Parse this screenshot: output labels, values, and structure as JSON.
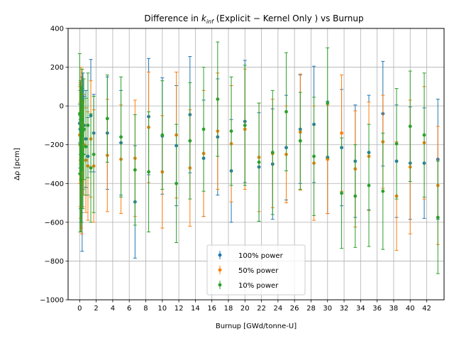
{
  "chart_data": {
    "type": "scatter",
    "title": "Difference in k_inf (Explicit − Kernel Only ) vs Burnup",
    "title_parts": {
      "prefix": "Difference in ",
      "k": "k",
      "sub": "inf",
      "suffix": " (Explicit − Kernel Only ) vs Burnup"
    },
    "xlabel": "Burnup [GWd/tonne-U]",
    "ylabel": "Δρ [pcm]",
    "xlim": [
      -1.4,
      44.1
    ],
    "ylim": [
      -1000,
      400
    ],
    "xticks": [
      0,
      2,
      4,
      6,
      8,
      10,
      12,
      14,
      16,
      18,
      20,
      22,
      24,
      26,
      28,
      30,
      32,
      34,
      36,
      38,
      40,
      42
    ],
    "yticks": [
      -1000,
      -800,
      -600,
      -400,
      -200,
      0,
      200,
      400
    ],
    "grid": true,
    "legend_position": "bottom-center",
    "series": [
      {
        "name": "100% power",
        "color": "#1f77b4",
        "points": [
          {
            "x": 0.0,
            "y": -90,
            "err": 100
          },
          {
            "x": 0.05,
            "y": -120,
            "err": 200
          },
          {
            "x": 0.1,
            "y": -70,
            "err": 180
          },
          {
            "x": 0.15,
            "y": -300,
            "err": 300
          },
          {
            "x": 0.2,
            "y": -130,
            "err": 230
          },
          {
            "x": 0.25,
            "y": -200,
            "err": 350
          },
          {
            "x": 0.3,
            "y": -330,
            "err": 420
          },
          {
            "x": 0.4,
            "y": -130,
            "err": 300
          },
          {
            "x": 0.5,
            "y": -100,
            "err": 150
          },
          {
            "x": 0.75,
            "y": -170,
            "err": 250
          },
          {
            "x": 1.0,
            "y": -260,
            "err": 200
          },
          {
            "x": 1.35,
            "y": -50,
            "err": 290
          },
          {
            "x": 1.7,
            "y": -140,
            "err": 200
          },
          {
            "x": 3.35,
            "y": -140,
            "err": 290
          },
          {
            "x": 5.0,
            "y": -190,
            "err": 270
          },
          {
            "x": 6.7,
            "y": -495,
            "err": 290
          },
          {
            "x": 8.35,
            "y": -55,
            "err": 300
          },
          {
            "x": 10.0,
            "y": -155,
            "err": 300
          },
          {
            "x": 11.7,
            "y": -205,
            "err": 310
          },
          {
            "x": 13.35,
            "y": -45,
            "err": 300
          },
          {
            "x": 15.0,
            "y": -270,
            "err": 300
          },
          {
            "x": 16.7,
            "y": -160,
            "err": 300
          },
          {
            "x": 18.35,
            "y": -335,
            "err": 265
          },
          {
            "x": 20.0,
            "y": -80,
            "err": 315
          },
          {
            "x": 21.7,
            "y": -315,
            "err": 280
          },
          {
            "x": 23.35,
            "y": -300,
            "err": 285
          },
          {
            "x": 25.0,
            "y": -215,
            "err": 270
          },
          {
            "x": 26.7,
            "y": -120,
            "err": 280
          },
          {
            "x": 28.35,
            "y": -95,
            "err": 300
          },
          {
            "x": 30.0,
            "y": -265,
            "err": 290
          },
          {
            "x": 31.7,
            "y": -215,
            "err": 300
          },
          {
            "x": 33.35,
            "y": -285,
            "err": 290
          },
          {
            "x": 35.0,
            "y": -240,
            "err": 295
          },
          {
            "x": 36.7,
            "y": -40,
            "err": 270
          },
          {
            "x": 38.35,
            "y": -285,
            "err": 290
          },
          {
            "x": 40.0,
            "y": -295,
            "err": 290
          },
          {
            "x": 41.7,
            "y": -295,
            "err": 285
          },
          {
            "x": 43.35,
            "y": -275,
            "err": 310
          }
        ]
      },
      {
        "name": "50% power",
        "color": "#ff7f0e",
        "points": [
          {
            "x": 0.0,
            "y": -150,
            "err": 250
          },
          {
            "x": 0.05,
            "y": -200,
            "err": 320
          },
          {
            "x": 0.1,
            "y": -280,
            "err": 300
          },
          {
            "x": 0.15,
            "y": -50,
            "err": 250
          },
          {
            "x": 0.2,
            "y": -300,
            "err": 330
          },
          {
            "x": 0.25,
            "y": -380,
            "err": 280
          },
          {
            "x": 0.3,
            "y": -100,
            "err": 290
          },
          {
            "x": 0.4,
            "y": -250,
            "err": 270
          },
          {
            "x": 0.5,
            "y": -200,
            "err": 260
          },
          {
            "x": 0.75,
            "y": -280,
            "err": 270
          },
          {
            "x": 1.0,
            "y": -310,
            "err": 280
          },
          {
            "x": 1.35,
            "y": -170,
            "err": 300
          },
          {
            "x": 1.7,
            "y": -310,
            "err": 290
          },
          {
            "x": 3.35,
            "y": -255,
            "err": 290
          },
          {
            "x": 5.0,
            "y": -275,
            "err": 280
          },
          {
            "x": 6.7,
            "y": -270,
            "err": 300
          },
          {
            "x": 8.35,
            "y": -110,
            "err": 285
          },
          {
            "x": 10.0,
            "y": -340,
            "err": 290
          },
          {
            "x": 11.7,
            "y": -150,
            "err": 325
          },
          {
            "x": 13.35,
            "y": -320,
            "err": 300
          },
          {
            "x": 15.0,
            "y": -245,
            "err": 325
          },
          {
            "x": 16.7,
            "y": -130,
            "err": 300
          },
          {
            "x": 18.35,
            "y": -195,
            "err": 300
          },
          {
            "x": 20.0,
            "y": -120,
            "err": 310
          },
          {
            "x": 21.7,
            "y": -265,
            "err": 280
          },
          {
            "x": 23.35,
            "y": -245,
            "err": 280
          },
          {
            "x": 25.0,
            "y": -250,
            "err": 250
          },
          {
            "x": 26.7,
            "y": -135,
            "err": 300
          },
          {
            "x": 28.35,
            "y": -295,
            "err": 295
          },
          {
            "x": 30.0,
            "y": -275,
            "err": 280
          },
          {
            "x": 31.7,
            "y": -140,
            "err": 300
          },
          {
            "x": 33.35,
            "y": -325,
            "err": 300
          },
          {
            "x": 35.0,
            "y": -260,
            "err": 280
          },
          {
            "x": 36.7,
            "y": -185,
            "err": 240
          },
          {
            "x": 38.35,
            "y": -465,
            "err": 280
          },
          {
            "x": 40.0,
            "y": -315,
            "err": 345
          },
          {
            "x": 41.7,
            "y": -190,
            "err": 290
          },
          {
            "x": 43.35,
            "y": -410,
            "err": 305
          }
        ]
      },
      {
        "name": "10% power",
        "color": "#2ca02c",
        "points": [
          {
            "x": 0.0,
            "y": -40,
            "err": 310
          },
          {
            "x": 0.05,
            "y": -350,
            "err": 300
          },
          {
            "x": 0.1,
            "y": -200,
            "err": 330
          },
          {
            "x": 0.15,
            "y": -380,
            "err": 270
          },
          {
            "x": 0.2,
            "y": -150,
            "err": 250
          },
          {
            "x": 0.25,
            "y": -300,
            "err": 300
          },
          {
            "x": 0.3,
            "y": -70,
            "err": 260
          },
          {
            "x": 0.4,
            "y": -250,
            "err": 280
          },
          {
            "x": 0.5,
            "y": -120,
            "err": 260
          },
          {
            "x": 0.75,
            "y": -210,
            "err": 250
          },
          {
            "x": 1.0,
            "y": -100,
            "err": 270
          },
          {
            "x": 1.35,
            "y": -320,
            "err": 280
          },
          {
            "x": 1.7,
            "y": -250,
            "err": 300
          },
          {
            "x": 3.35,
            "y": -65,
            "err": 225
          },
          {
            "x": 5.0,
            "y": -160,
            "err": 310
          },
          {
            "x": 6.7,
            "y": -330,
            "err": 285
          },
          {
            "x": 8.35,
            "y": -340,
            "err": 310
          },
          {
            "x": 10.0,
            "y": -150,
            "err": 280
          },
          {
            "x": 11.7,
            "y": -400,
            "err": 305
          },
          {
            "x": 13.35,
            "y": -180,
            "err": 300
          },
          {
            "x": 15.0,
            "y": -120,
            "err": 320
          },
          {
            "x": 16.7,
            "y": 35,
            "err": 295
          },
          {
            "x": 18.35,
            "y": -130,
            "err": 280
          },
          {
            "x": 20.0,
            "y": -100,
            "err": 310
          },
          {
            "x": 21.7,
            "y": -290,
            "err": 305
          },
          {
            "x": 23.35,
            "y": -240,
            "err": 320
          },
          {
            "x": 25.0,
            "y": -30,
            "err": 305
          },
          {
            "x": 26.7,
            "y": -180,
            "err": 250
          },
          {
            "x": 28.35,
            "y": -260,
            "err": 305
          },
          {
            "x": 30.0,
            "y": 15,
            "err": 285
          },
          {
            "x": 31.7,
            "y": -450,
            "err": 285
          },
          {
            "x": 33.35,
            "y": -465,
            "err": 265
          },
          {
            "x": 35.0,
            "y": -410,
            "err": 315
          },
          {
            "x": 36.7,
            "y": -440,
            "err": 300
          },
          {
            "x": 38.35,
            "y": -195,
            "err": 285
          },
          {
            "x": 40.0,
            "y": -105,
            "err": 285
          },
          {
            "x": 41.7,
            "y": -150,
            "err": 320
          },
          {
            "x": 43.35,
            "y": -575,
            "err": 290
          }
        ]
      }
    ]
  }
}
